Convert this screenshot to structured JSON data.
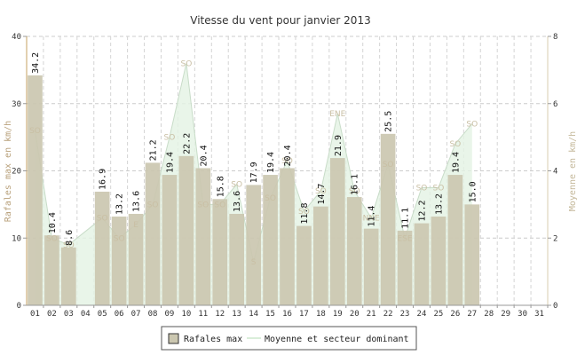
{
  "chart_data": {
    "type": "bar",
    "title": "Vitesse du vent pour janvier 2013",
    "ylabel": "Rafales max en km/h",
    "ylabel_right": "Moyenne en km/h",
    "ylim": [
      0,
      40
    ],
    "ylim_right": [
      0,
      8
    ],
    "yticks": [
      "0",
      "10",
      "20",
      "30",
      "40"
    ],
    "yticks_right": [
      "0",
      "2",
      "4",
      "6",
      "8"
    ],
    "grid": true,
    "legend_position": "bottom-center",
    "categories": [
      "01",
      "02",
      "03",
      "04",
      "05",
      "06",
      "07",
      "08",
      "09",
      "10",
      "11",
      "12",
      "13",
      "14",
      "15",
      "16",
      "17",
      "18",
      "19",
      "20",
      "21",
      "22",
      "23",
      "24",
      "25",
      "26",
      "27",
      "28",
      "29",
      "30",
      "31"
    ],
    "series": [
      {
        "name": "Rafales max",
        "axis": "left",
        "color": "#cbc7b0",
        "values": [
          34.2,
          10.4,
          8.6,
          null,
          16.9,
          13.2,
          13.6,
          21.2,
          19.4,
          22.2,
          20.4,
          15.8,
          13.6,
          17.9,
          19.4,
          20.4,
          11.8,
          14.7,
          21.9,
          16.1,
          11.4,
          25.5,
          11.1,
          12.2,
          13.2,
          19.4,
          15.0,
          null,
          null,
          null,
          null
        ],
        "labels": [
          "34.2",
          "10.4",
          "8.6",
          "",
          "16.9",
          "13.2",
          "13.6",
          "21.2",
          "19.4",
          "22.2",
          "20.4",
          "15.8",
          "13.6",
          "17.9",
          "19.4",
          "20.4",
          "11.8",
          "14.7",
          "21.9",
          "16.1",
          "11.4",
          "25.5",
          "11.1",
          "12.2",
          "13.2",
          "19.4",
          "15.0",
          "",
          "",
          "",
          ""
        ]
      },
      {
        "name": "Moyenne et secteur dominant",
        "axis": "right",
        "color": "#e3f2e3",
        "values": [
          5.2,
          2.0,
          1.8,
          2.2,
          2.6,
          2.0,
          2.4,
          3.0,
          5.0,
          7.2,
          3.0,
          3.0,
          3.6,
          1.3,
          3.2,
          4.3,
          2.8,
          3.4,
          5.7,
          3.4,
          2.6,
          4.2,
          2.0,
          3.5,
          3.5,
          4.8,
          5.4,
          null,
          null,
          null,
          null
        ],
        "sectors": [
          "SO",
          "SO",
          "SO",
          "",
          "SO",
          "SO",
          "E",
          "SO",
          "SO",
          "SO",
          "SO",
          "SO",
          "SO",
          "S",
          "SO",
          "SO",
          "SO",
          "SO",
          "ENE",
          "SO",
          "NNE",
          "SO",
          "ESE",
          "SO",
          "SO",
          "SO",
          "SO",
          "",
          "",
          "",
          ""
        ]
      }
    ]
  }
}
